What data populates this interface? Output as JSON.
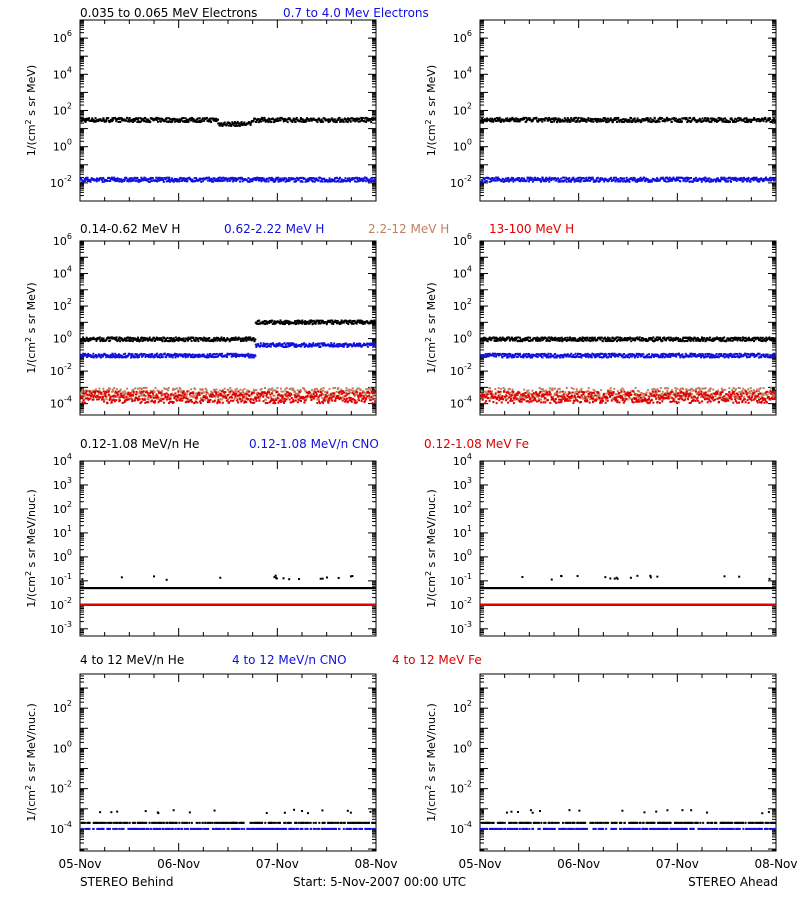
{
  "colors": {
    "black": "#000000",
    "blue": "#1010e0",
    "tan": "#c08060",
    "red": "#e00000"
  },
  "footer": {
    "left": "STEREO Behind",
    "center": "Start:  5-Nov-2007 00:00 UTC",
    "right": "STEREO Ahead"
  },
  "x_axis": {
    "ticks": [
      "05-Nov",
      "06-Nov",
      "07-Nov",
      "08-Nov"
    ]
  },
  "chart_data": [
    {
      "type": "scatter",
      "panel": "electrons-behind",
      "yscale": "log",
      "ylim": [
        0.001,
        10000000
      ],
      "ylabel": "1/(cm² s sr MeV)",
      "ytick_labels": [
        "10^-2",
        "10^0",
        "10^2",
        "10^4",
        "10^6"
      ],
      "xlim": [
        0,
        3
      ],
      "legend": [
        "0.035 to 0.065 MeV Electrons",
        "0.7 to 4.0 Mev Electrons"
      ],
      "series": [
        {
          "name": "0.035 to 0.065 MeV Electrons",
          "color": "black",
          "segments": [
            {
              "x_start": 0,
              "x_end": 1.39,
              "level": 30
            },
            {
              "x_start": 1.39,
              "x_end": 1.73,
              "level": 18
            },
            {
              "x_start": 1.73,
              "x_end": 3.0,
              "level": 30
            }
          ]
        },
        {
          "name": "0.7 to 4.0 Mev Electrons",
          "color": "blue",
          "segments": [
            {
              "x_start": 0,
              "x_end": 3.0,
              "level": 0.015
            }
          ]
        }
      ]
    },
    {
      "type": "scatter",
      "panel": "electrons-ahead",
      "yscale": "log",
      "ylim": [
        0.001,
        10000000
      ],
      "ylabel": "1/(cm² s sr MeV)",
      "ytick_labels": [
        "10^-2",
        "10^0",
        "10^2",
        "10^4",
        "10^6"
      ],
      "xlim": [
        0,
        3
      ],
      "series": [
        {
          "name": "0.035 to 0.065 MeV Electrons",
          "color": "black",
          "segments": [
            {
              "x_start": 0,
              "x_end": 3.0,
              "level": 30
            }
          ]
        },
        {
          "name": "0.7 to 4.0 Mev Electrons",
          "color": "blue",
          "segments": [
            {
              "x_start": 0,
              "x_end": 3.0,
              "level": 0.015
            }
          ]
        }
      ]
    },
    {
      "type": "scatter",
      "panel": "protons-behind",
      "yscale": "log",
      "ylim": [
        2e-05,
        1000000
      ],
      "ylabel": "1/(cm² s sr MeV)",
      "ytick_labels": [
        "10^-4",
        "10^-2",
        "10^0",
        "10^2",
        "10^4",
        "10^6"
      ],
      "xlim": [
        0,
        3
      ],
      "legend": [
        "0.14-0.62 MeV H",
        "0.62-2.22 MeV H",
        "2.2-12 MeV H",
        "13-100 MeV H"
      ],
      "series": [
        {
          "name": "0.14-0.62 MeV H",
          "color": "black",
          "segments": [
            {
              "x_start": 0,
              "x_end": 1.77,
              "level": 0.9
            },
            {
              "x_start": 1.77,
              "x_end": 3.0,
              "level": 10
            }
          ]
        },
        {
          "name": "0.62-2.22 MeV H",
          "color": "blue",
          "segments": [
            {
              "x_start": 0,
              "x_end": 1.77,
              "level": 0.09
            },
            {
              "x_start": 1.77,
              "x_end": 3.0,
              "level": 0.4
            }
          ]
        },
        {
          "name": "2.2-12 MeV H",
          "color": "tan",
          "segments": [
            {
              "x_start": 0,
              "x_end": 3.0,
              "level": 0.0004
            }
          ]
        },
        {
          "name": "13-100 MeV H",
          "color": "red",
          "segments": [
            {
              "x_start": 0,
              "x_end": 3.0,
              "level": 0.00025
            }
          ]
        }
      ]
    },
    {
      "type": "scatter",
      "panel": "protons-ahead",
      "yscale": "log",
      "ylim": [
        2e-05,
        1000000
      ],
      "ylabel": "1/(cm² s sr MeV)",
      "ytick_labels": [
        "10^-4",
        "10^-2",
        "10^0",
        "10^2",
        "10^4",
        "10^6"
      ],
      "xlim": [
        0,
        3
      ],
      "series": [
        {
          "name": "0.14-0.62 MeV H",
          "color": "black",
          "segments": [
            {
              "x_start": 0,
              "x_end": 3.0,
              "level": 0.9
            }
          ]
        },
        {
          "name": "0.62-2.22 MeV H",
          "color": "blue",
          "segments": [
            {
              "x_start": 0,
              "x_end": 3.0,
              "level": 0.09
            }
          ]
        },
        {
          "name": "2.2-12 MeV H",
          "color": "tan",
          "segments": [
            {
              "x_start": 0,
              "x_end": 3.0,
              "level": 0.0004
            }
          ]
        },
        {
          "name": "13-100 MeV H",
          "color": "red",
          "segments": [
            {
              "x_start": 0,
              "x_end": 3.0,
              "level": 0.00025
            }
          ]
        }
      ]
    },
    {
      "type": "scatter",
      "panel": "heavy-low-behind",
      "yscale": "log",
      "ylim": [
        0.0005,
        10000
      ],
      "ylabel": "1/(cm² s sr MeV/nuc.)",
      "ytick_labels": [
        "10^-3",
        "10^-2",
        "10^-1",
        "10^0",
        "10^1",
        "10^2",
        "10^3",
        "10^4"
      ],
      "xlim": [
        0,
        3
      ],
      "legend": [
        "0.12-1.08 MeV/n He",
        "0.12-1.08 MeV/n CNO",
        "0.12-1.08 MeV Fe"
      ],
      "series": [
        {
          "name": "0.12-1.08 MeV/n He",
          "color": "black",
          "segments": [
            {
              "x_start": 0,
              "x_end": 3.0,
              "level": 0.05
            }
          ]
        },
        {
          "name": "0.12-1.08 MeV/n CNO",
          "color": "blue",
          "segments": [
            {
              "x_start": 0,
              "x_end": 3.0,
              "level": 0.01
            }
          ]
        },
        {
          "name": "0.12-1.08 MeV Fe",
          "color": "red",
          "segments": [
            {
              "x_start": 0,
              "x_end": 3.0,
              "level": 0.01
            }
          ]
        }
      ]
    },
    {
      "type": "scatter",
      "panel": "heavy-low-ahead",
      "yscale": "log",
      "ylim": [
        0.0005,
        10000
      ],
      "ylabel": "1/(cm² s sr MeV/nuc.)",
      "ytick_labels": [
        "10^-3",
        "10^-2",
        "10^-1",
        "10^0",
        "10^1",
        "10^2",
        "10^3",
        "10^4"
      ],
      "xlim": [
        0,
        3
      ],
      "series": [
        {
          "name": "0.12-1.08 MeV/n He",
          "color": "black",
          "segments": [
            {
              "x_start": 0,
              "x_end": 3.0,
              "level": 0.05
            }
          ]
        },
        {
          "name": "0.12-1.08 MeV/n CNO",
          "color": "blue",
          "segments": [
            {
              "x_start": 0,
              "x_end": 3.0,
              "level": 0.01
            }
          ]
        },
        {
          "name": "0.12-1.08 MeV Fe",
          "color": "red",
          "segments": [
            {
              "x_start": 0,
              "x_end": 3.0,
              "level": 0.01
            }
          ]
        }
      ]
    },
    {
      "type": "scatter",
      "panel": "heavy-high-behind",
      "yscale": "log",
      "ylim": [
        8e-06,
        5000
      ],
      "ylabel": "1/(cm² s sr MeV/nuc.)",
      "ytick_labels": [
        "10^-4",
        "10^-2",
        "10^0",
        "10^2"
      ],
      "xlim": [
        0,
        3
      ],
      "legend": [
        "4 to 12 MeV/n He",
        "4 to 12 MeV/n CNO",
        "4 to 12 MeV Fe"
      ],
      "series": [
        {
          "name": "4 to 12 MeV/n He",
          "color": "black",
          "segments": [
            {
              "x_start": 0,
              "x_end": 3.0,
              "level": 0.0002
            }
          ]
        },
        {
          "name": "4 to 12 MeV/n CNO",
          "color": "blue",
          "segments": [
            {
              "x_start": 0,
              "x_end": 3.0,
              "level": 0.0001
            }
          ]
        },
        {
          "name": "4 to 12 MeV Fe",
          "color": "red",
          "segments": []
        }
      ]
    },
    {
      "type": "scatter",
      "panel": "heavy-high-ahead",
      "yscale": "log",
      "ylim": [
        8e-06,
        5000
      ],
      "ylabel": "1/(cm² s sr MeV/nuc.)",
      "ytick_labels": [
        "10^-4",
        "10^-2",
        "10^0",
        "10^2"
      ],
      "xlim": [
        0,
        3
      ],
      "series": [
        {
          "name": "4 to 12 MeV/n He",
          "color": "black",
          "segments": [
            {
              "x_start": 0,
              "x_end": 3.0,
              "level": 0.0002
            }
          ]
        },
        {
          "name": "4 to 12 MeV/n CNO",
          "color": "blue",
          "segments": [
            {
              "x_start": 0,
              "x_end": 3.0,
              "level": 0.0001
            }
          ]
        },
        {
          "name": "4 to 12 MeV Fe",
          "color": "red",
          "segments": []
        }
      ]
    }
  ]
}
